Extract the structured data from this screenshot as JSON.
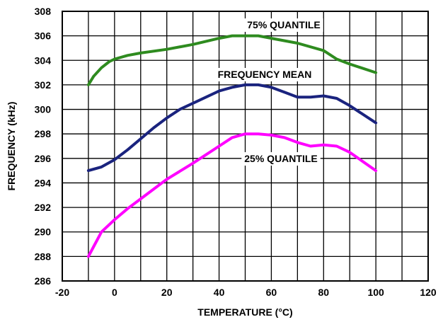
{
  "chart_data": {
    "type": "line",
    "xlabel": "TEMPERATURE (°C)",
    "ylabel": "FREQUENCY (kHz)",
    "xlim": [
      -20,
      120
    ],
    "ylim": [
      286,
      308
    ],
    "xticks": [
      -20,
      0,
      20,
      40,
      60,
      80,
      100,
      120
    ],
    "yticks": [
      286,
      288,
      290,
      292,
      294,
      296,
      298,
      300,
      302,
      304,
      306,
      308
    ],
    "grid": true,
    "series": [
      {
        "name": "75% QUANTILE",
        "color": "#2e8b1f",
        "x": [
          -10,
          -8,
          -5,
          -2,
          0,
          5,
          10,
          20,
          30,
          40,
          45,
          50,
          55,
          60,
          70,
          80,
          85,
          90,
          100
        ],
        "y": [
          302,
          302.7,
          303.4,
          303.9,
          304.1,
          304.4,
          304.6,
          304.9,
          305.3,
          305.8,
          306,
          306,
          306,
          305.8,
          305.4,
          304.8,
          304.1,
          303.7,
          303
        ]
      },
      {
        "name": "FREQUENCY MEAN",
        "color": "#1a237e",
        "x": [
          -10,
          -5,
          0,
          5,
          10,
          15,
          20,
          25,
          30,
          40,
          45,
          50,
          55,
          60,
          65,
          70,
          75,
          80,
          85,
          90,
          100
        ],
        "y": [
          295,
          295.3,
          295.9,
          296.7,
          297.6,
          298.5,
          299.3,
          300,
          300.5,
          301.5,
          301.8,
          302,
          302,
          301.8,
          301.4,
          301,
          301,
          301.1,
          300.9,
          300.3,
          298.9
        ]
      },
      {
        "name": "25% QUANTILE",
        "color": "#ff00ff",
        "x": [
          -10,
          -8,
          -5,
          -2,
          0,
          5,
          10,
          20,
          30,
          40,
          45,
          50,
          55,
          60,
          65,
          70,
          75,
          80,
          85,
          90,
          100
        ],
        "y": [
          288,
          288.8,
          290,
          290.6,
          291,
          291.9,
          292.7,
          294.3,
          295.6,
          297,
          297.7,
          298,
          298,
          297.9,
          297.7,
          297.3,
          297,
          297.1,
          297,
          296.5,
          295
        ]
      }
    ],
    "labels": {
      "q75": "75% QUANTILE",
      "mean": "FREQUENCY MEAN",
      "q25": "25% QUANTILE"
    }
  }
}
